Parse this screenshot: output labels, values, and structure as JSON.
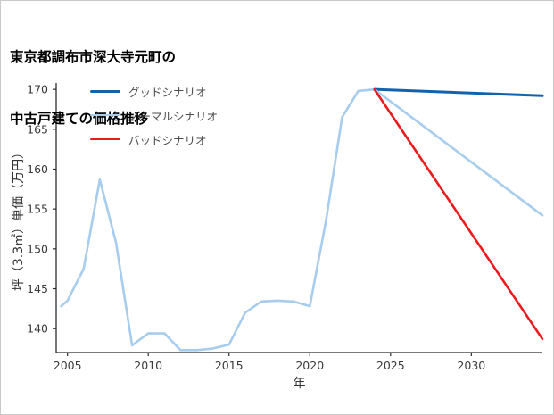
{
  "title": {
    "line1": "東京都調布市深大寺元町の",
    "line2": "中古戸建ての価格推移"
  },
  "chart_data": {
    "type": "line",
    "title": "東京都調布市深大寺元町の中古戸建ての価格推移",
    "xlabel": "年",
    "ylabel": "坪（3.3㎡）単価（万円）",
    "xlim": [
      2004.3,
      2034.4
    ],
    "ylim": [
      137.0,
      170.8
    ],
    "xticks": [
      2005,
      2010,
      2015,
      2020,
      2025,
      2030
    ],
    "yticks": [
      140,
      145,
      150,
      155,
      160,
      165,
      170
    ],
    "grid": false,
    "legend_position": "upper-left",
    "series": [
      {
        "name": "グッドシナリオ",
        "color": "#1263ae",
        "width": 3,
        "x": [
          2024,
          2034.4
        ],
        "y": [
          170.0,
          169.2
        ]
      },
      {
        "name": "ノーマルシナリオ",
        "color": "#a7cdee",
        "width": 2.6,
        "x": [
          2004.6,
          2005,
          2006,
          2007,
          2008,
          2009,
          2010,
          2011,
          2012,
          2013,
          2014,
          2015,
          2016,
          2017,
          2018,
          2019,
          2020,
          2021,
          2022,
          2023,
          2024,
          2034.4
        ],
        "y": [
          142.8,
          143.5,
          147.5,
          158.7,
          150.8,
          137.9,
          139.4,
          139.4,
          137.3,
          137.3,
          137.5,
          138.0,
          142.0,
          143.4,
          143.5,
          143.4,
          142.8,
          153.5,
          166.5,
          169.8,
          170.0,
          154.2
        ]
      },
      {
        "name": "バッドシナリオ",
        "color": "#ea1a1d",
        "width": 2.6,
        "x": [
          2024,
          2034.4
        ],
        "y": [
          170.0,
          138.7
        ]
      }
    ]
  }
}
